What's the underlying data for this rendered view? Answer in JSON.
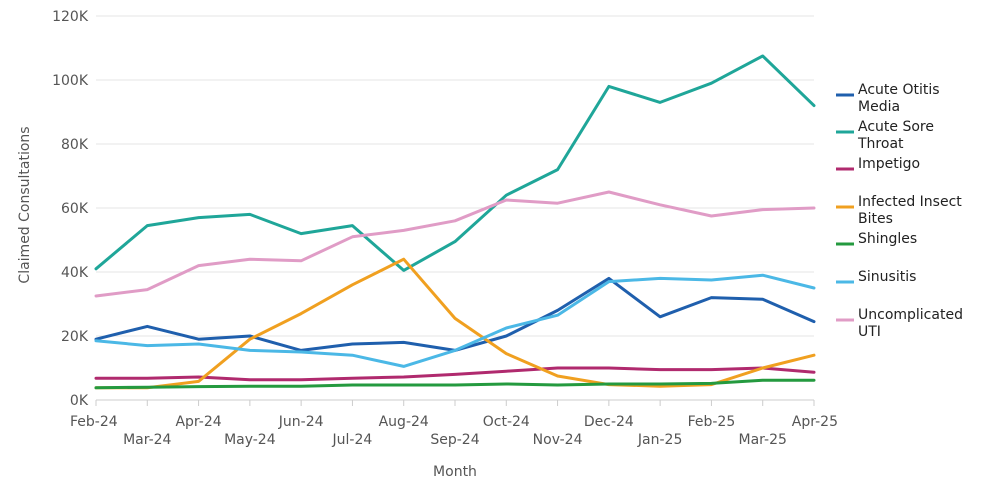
{
  "chart_data": {
    "type": "line",
    "xlabel": "Month",
    "ylabel": "Claimed Consultations",
    "ylim": [
      0,
      120000
    ],
    "y_ticks": [
      {
        "value": 0,
        "label": "0K"
      },
      {
        "value": 20000,
        "label": "20K"
      },
      {
        "value": 40000,
        "label": "40K"
      },
      {
        "value": 60000,
        "label": "60K"
      },
      {
        "value": 80000,
        "label": "80K"
      },
      {
        "value": 100000,
        "label": "100K"
      },
      {
        "value": 120000,
        "label": "120K"
      }
    ],
    "categories": [
      "Feb-24",
      "Mar-24",
      "Apr-24",
      "May-24",
      "Jun-24",
      "Jul-24",
      "Aug-24",
      "Sep-24",
      "Oct-24",
      "Nov-24",
      "Dec-24",
      "Jan-25",
      "Feb-25",
      "Mar-25",
      "Apr-25"
    ],
    "grid": true,
    "legend_position": "right",
    "series": [
      {
        "name": "Acute Otitis Media",
        "color": "#1f5fad",
        "values": [
          19000,
          23000,
          19000,
          20000,
          15500,
          17500,
          18000,
          15500,
          20000,
          28000,
          38000,
          26000,
          32000,
          31500,
          24500
        ]
      },
      {
        "name": "Acute Sore Throat",
        "color": "#1fa699",
        "values": [
          41000,
          54500,
          57000,
          58000,
          52000,
          54500,
          40500,
          49500,
          64000,
          72000,
          98000,
          93000,
          99000,
          107500,
          92000
        ]
      },
      {
        "name": "Impetigo",
        "color": "#b02a6e",
        "values": [
          6800,
          6800,
          7200,
          6300,
          6300,
          6800,
          7200,
          8000,
          9000,
          10000,
          10000,
          9500,
          9500,
          10000,
          8700
        ]
      },
      {
        "name": "Infected Insect Bites",
        "color": "#f0a020",
        "values": [
          3800,
          3800,
          5800,
          19000,
          27000,
          36000,
          44000,
          25500,
          14500,
          7500,
          4800,
          4300,
          4800,
          10000,
          14000
        ]
      },
      {
        "name": "Shingles",
        "color": "#249a3f",
        "values": [
          3800,
          4000,
          4200,
          4300,
          4300,
          4700,
          4700,
          4700,
          5000,
          4700,
          5000,
          5000,
          5200,
          6200,
          6200
        ]
      },
      {
        "name": "Sinusitis",
        "color": "#4bb8e6",
        "values": [
          18500,
          17000,
          17500,
          15500,
          15000,
          14000,
          10500,
          15500,
          22500,
          26500,
          37000,
          38000,
          37500,
          39000,
          35000
        ]
      },
      {
        "name": "Uncomplicated UTI",
        "color": "#e09cc6",
        "values": [
          32500,
          34500,
          42000,
          44000,
          43500,
          51000,
          53000,
          56000,
          62500,
          61500,
          65000,
          61000,
          57500,
          59500,
          60000
        ]
      }
    ]
  }
}
